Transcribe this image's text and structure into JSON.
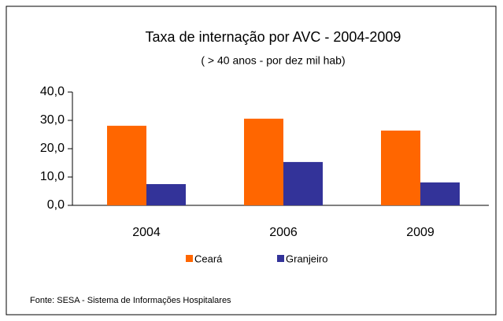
{
  "chart_data": {
    "type": "bar",
    "title": "Taxa de internação por AVC - 2004-2009",
    "subtitle": "( > 40 anos - por dez mil hab)",
    "categories": [
      "2004",
      "2006",
      "2009"
    ],
    "series": [
      {
        "name": "Ceará",
        "color": "#ff6600",
        "values": [
          28.1,
          30.6,
          26.4
        ]
      },
      {
        "name": "Granjeiro",
        "color": "#333399",
        "values": [
          7.5,
          15.3,
          8.1
        ]
      }
    ],
    "ylim": [
      0,
      40
    ],
    "yticks": [
      {
        "value": 0,
        "label": "0,0"
      },
      {
        "value": 10,
        "label": "10,0"
      },
      {
        "value": 20,
        "label": "20,0"
      },
      {
        "value": 30,
        "label": "30,0"
      },
      {
        "value": 40,
        "label": "40,0"
      }
    ],
    "legend": "bottom",
    "source": "Fonte: SESA - Sistema de Informações Hospitalares"
  }
}
